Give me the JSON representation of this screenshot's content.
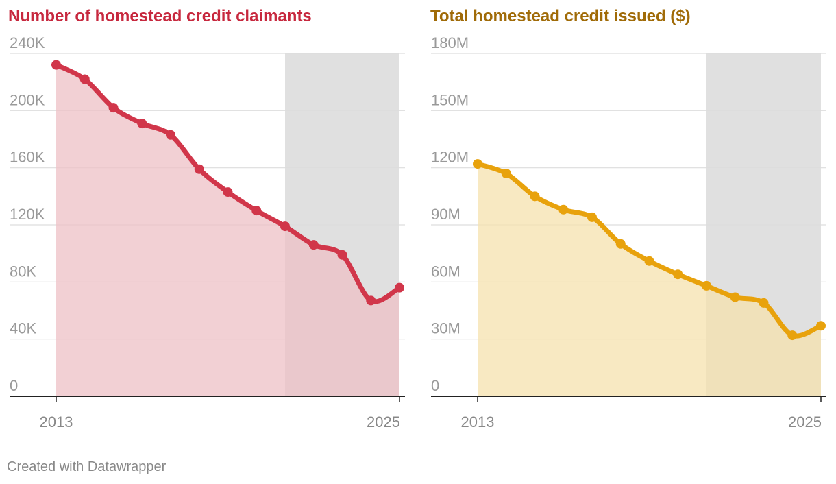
{
  "colors": {
    "left_line": "#d1364a",
    "left_fill": "#eec0c5",
    "right_line": "#e8a20c",
    "right_fill": "#f6e1ad",
    "shade": "#e0e0e0",
    "grid": "#dddddd",
    "tick_text": "#999999",
    "x_text": "#888888",
    "axis": "#222222"
  },
  "chart_data": [
    {
      "type": "area",
      "title": "Number of homestead credit claimants",
      "title_color": "#c7283e",
      "x": [
        2013,
        2014,
        2015,
        2016,
        2017,
        2018,
        2019,
        2020,
        2021,
        2022,
        2023,
        2024,
        2025
      ],
      "values": [
        232000,
        222000,
        202000,
        191000,
        183000,
        159000,
        143000,
        130000,
        119000,
        106000,
        99000,
        67000,
        76000
      ],
      "ylim": [
        0,
        240000
      ],
      "yticks": [
        0,
        40000,
        80000,
        120000,
        160000,
        200000,
        240000
      ],
      "ytick_labels": [
        "0",
        "40K",
        "80K",
        "120K",
        "160K",
        "200K",
        "240K"
      ],
      "xtick_labels": [
        "2013",
        "2025"
      ],
      "shaded_x_range": [
        2021,
        2025
      ]
    },
    {
      "type": "area",
      "title": "Total homestead credit issued ($)",
      "title_color": "#a06b08",
      "x": [
        2013,
        2014,
        2015,
        2016,
        2017,
        2018,
        2019,
        2020,
        2021,
        2022,
        2023,
        2024,
        2025
      ],
      "values": [
        122000000,
        117000000,
        105000000,
        98000000,
        94000000,
        80000000,
        71000000,
        64000000,
        58000000,
        52000000,
        49000000,
        32000000,
        37000000
      ],
      "ylim": [
        0,
        180000000
      ],
      "yticks": [
        0,
        30000000,
        60000000,
        90000000,
        120000000,
        150000000,
        180000000
      ],
      "ytick_labels": [
        "0",
        "30M",
        "60M",
        "90M",
        "120M",
        "150M",
        "180M"
      ],
      "xtick_labels": [
        "2013",
        "2025"
      ],
      "shaded_x_range": [
        2021,
        2025
      ]
    }
  ],
  "footer": "Created with Datawrapper"
}
